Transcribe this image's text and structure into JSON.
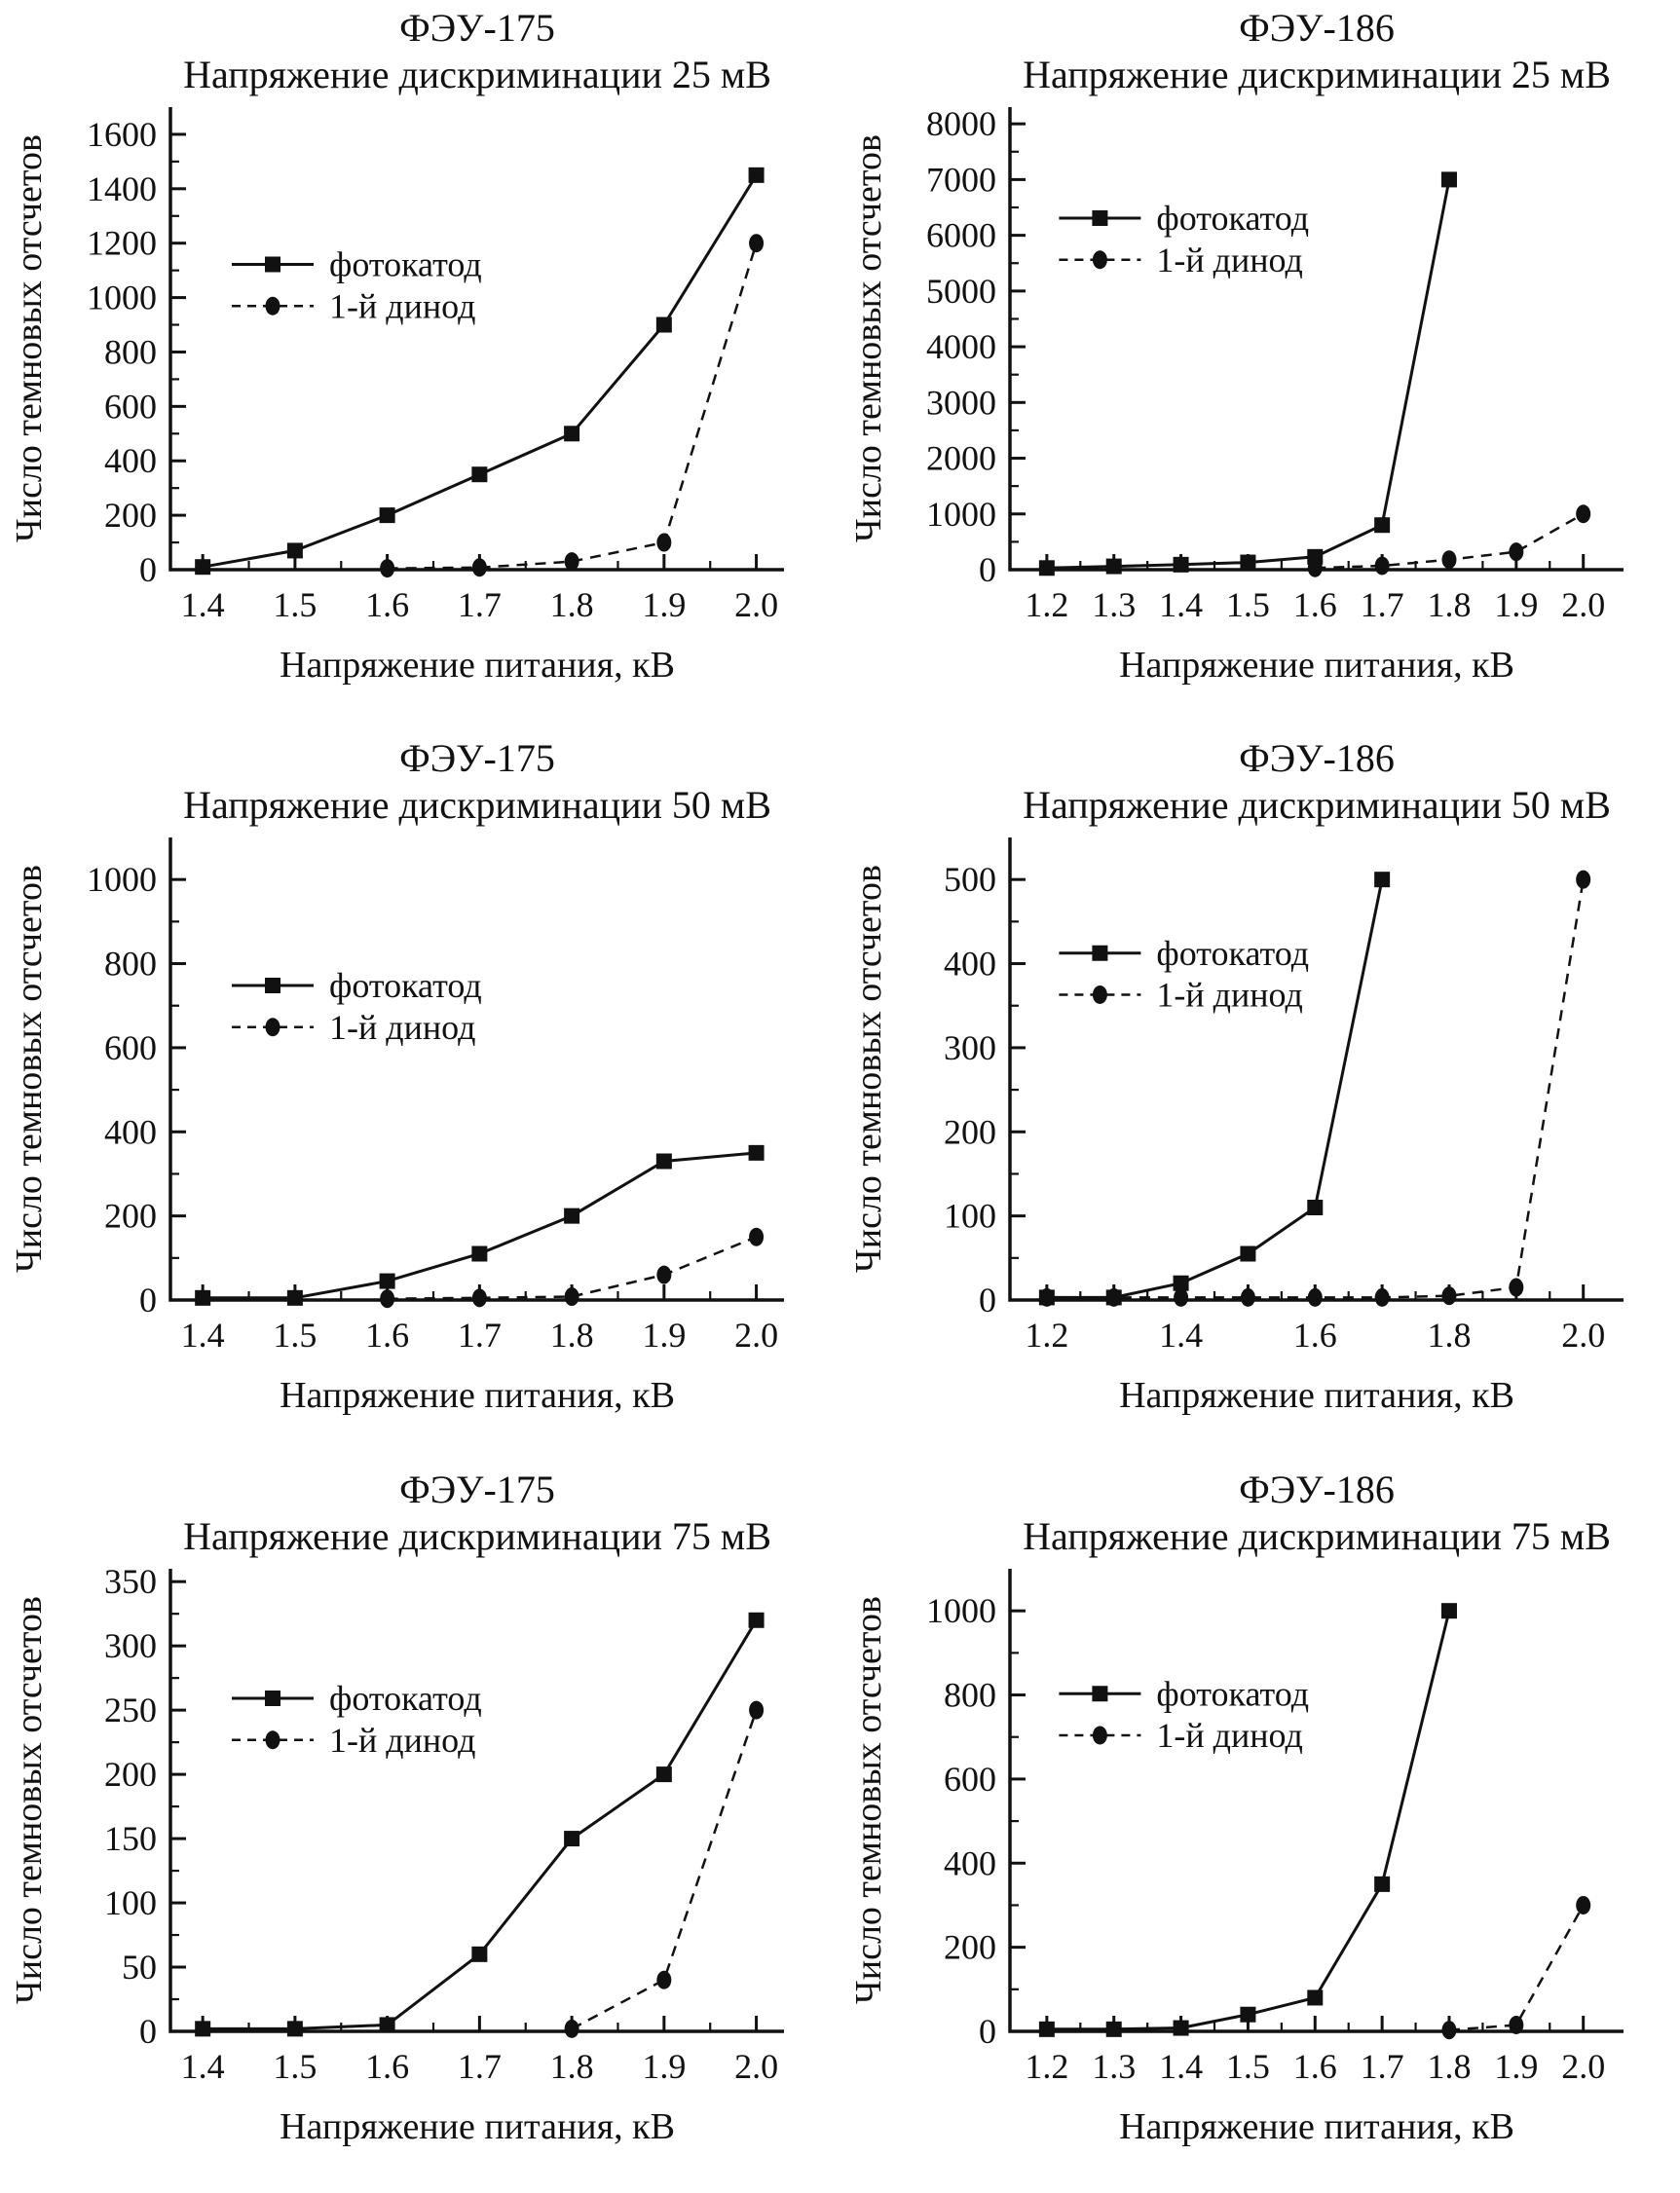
{
  "figure": {
    "color": "#111111",
    "ylabel": "Число темновых отсчетов",
    "xlabel": "Напряжение питания, кВ",
    "legend_labels": [
      "фотокатод",
      "1-й динод"
    ]
  },
  "chart_data": [
    {
      "type": "line",
      "title": "ФЭУ-175",
      "subtitle": "Напряжение дискриминации 25 мВ",
      "xlabel": "Напряжение питания, кВ",
      "ylabel": "Число темновых отсчетов",
      "xlim": [
        1.365,
        2.03
      ],
      "ylim": [
        0,
        1700
      ],
      "xtick_min": 1.4,
      "xtick_max": 2.0,
      "xtick_labels": [
        1.4,
        1.5,
        1.6,
        1.7,
        1.8,
        1.9,
        2.0
      ],
      "ytick_step": 200,
      "ytick_max": 1600,
      "yminor_step": 100,
      "legend_pos": {
        "x": 0.1,
        "y": 0.34
      },
      "series": [
        {
          "name": "фотокатод",
          "style": "solid",
          "marker": "square",
          "x": [
            1.4,
            1.5,
            1.6,
            1.7,
            1.8,
            1.9,
            2.0
          ],
          "y": [
            10,
            70,
            200,
            350,
            500,
            900,
            1450
          ]
        },
        {
          "name": "1-й динод",
          "style": "dashed",
          "marker": "circle",
          "x": [
            1.6,
            1.7,
            1.8,
            1.9,
            2.0
          ],
          "y": [
            5,
            8,
            30,
            100,
            1200
          ]
        }
      ]
    },
    {
      "type": "line",
      "title": "ФЭУ-186",
      "subtitle": "Напряжение дискриминации 25 мВ",
      "xlabel": "Напряжение питания, кВ",
      "ylabel": "Число темновых отсчетов",
      "xlim": [
        1.145,
        2.06
      ],
      "ylim": [
        0,
        8300
      ],
      "xtick_min": 1.2,
      "xtick_max": 2.0,
      "xtick_labels": [
        1.2,
        1.3,
        1.4,
        1.5,
        1.6,
        1.7,
        1.8,
        1.9,
        2.0
      ],
      "ytick_step": 1000,
      "ytick_max": 8000,
      "yminor_step": 500,
      "legend_pos": {
        "x": 0.08,
        "y": 0.24
      },
      "series": [
        {
          "name": "фотокатод",
          "style": "solid",
          "marker": "square",
          "x": [
            1.2,
            1.3,
            1.4,
            1.5,
            1.6,
            1.7,
            1.8
          ],
          "y": [
            30,
            60,
            90,
            130,
            230,
            800,
            7000
          ]
        },
        {
          "name": "1-й динод",
          "style": "dashed",
          "marker": "circle",
          "x": [
            1.6,
            1.7,
            1.8,
            1.9,
            2.0
          ],
          "y": [
            30,
            70,
            180,
            320,
            1000
          ]
        }
      ]
    },
    {
      "type": "line",
      "title": "ФЭУ-175",
      "subtitle": "Напряжение дискриминации 50 мВ",
      "xlabel": "Напряжение питания, кВ",
      "ylabel": "Число темновых отсчетов",
      "xlim": [
        1.365,
        2.03
      ],
      "ylim": [
        0,
        1100
      ],
      "xtick_min": 1.4,
      "xtick_max": 2.0,
      "xtick_labels": [
        1.4,
        1.5,
        1.6,
        1.7,
        1.8,
        1.9,
        2.0
      ],
      "ytick_step": 200,
      "ytick_max": 1000,
      "yminor_step": 100,
      "legend_pos": {
        "x": 0.1,
        "y": 0.32
      },
      "series": [
        {
          "name": "фотокатод",
          "style": "solid",
          "marker": "square",
          "x": [
            1.4,
            1.5,
            1.6,
            1.7,
            1.8,
            1.9,
            2.0
          ],
          "y": [
            5,
            5,
            45,
            110,
            200,
            330,
            350
          ]
        },
        {
          "name": "1-й динод",
          "style": "dashed",
          "marker": "circle",
          "x": [
            1.6,
            1.7,
            1.8,
            1.9,
            2.0
          ],
          "y": [
            3,
            5,
            8,
            60,
            150
          ]
        }
      ]
    },
    {
      "type": "line",
      "title": "ФЭУ-186",
      "subtitle": "Напряжение дискриминации 50 мВ",
      "xlabel": "Напряжение питания, кВ",
      "ylabel": "Число темновых отсчетов",
      "xlim": [
        1.145,
        2.06
      ],
      "ylim": [
        0,
        550
      ],
      "xtick_min": 1.2,
      "xtick_max": 2.0,
      "xtick_labels": [
        1.2,
        1.4,
        1.6,
        1.8,
        2.0
      ],
      "ytick_step": 100,
      "ytick_max": 500,
      "yminor_step": 50,
      "legend_pos": {
        "x": 0.08,
        "y": 0.25
      },
      "series": [
        {
          "name": "фотокатод",
          "style": "solid",
          "marker": "square",
          "x": [
            1.2,
            1.3,
            1.4,
            1.5,
            1.6,
            1.7
          ],
          "y": [
            3,
            3,
            20,
            55,
            110,
            500
          ]
        },
        {
          "name": "1-й динод",
          "style": "dashed",
          "marker": "circle",
          "x": [
            1.2,
            1.3,
            1.4,
            1.5,
            1.6,
            1.7,
            1.8,
            1.9,
            2.0
          ],
          "y": [
            3,
            3,
            3,
            3,
            3,
            3,
            5,
            15,
            500
          ]
        }
      ]
    },
    {
      "type": "line",
      "title": "ФЭУ-175",
      "subtitle": "Напряжение дискриминации 75 мВ",
      "xlabel": "Напряжение питания, кВ",
      "ylabel": "Число темновых отсчетов",
      "xlim": [
        1.365,
        2.03
      ],
      "ylim": [
        0,
        360
      ],
      "xtick_min": 1.4,
      "xtick_max": 2.0,
      "xtick_labels": [
        1.4,
        1.5,
        1.6,
        1.7,
        1.8,
        1.9,
        2.0
      ],
      "ytick_step": 50,
      "ytick_max": 350,
      "yminor_step": 25,
      "legend_pos": {
        "x": 0.1,
        "y": 0.28
      },
      "series": [
        {
          "name": "фотокатод",
          "style": "solid",
          "marker": "square",
          "x": [
            1.4,
            1.5,
            1.6,
            1.7,
            1.8,
            1.9,
            2.0
          ],
          "y": [
            2,
            2,
            5,
            60,
            150,
            200,
            320
          ]
        },
        {
          "name": "1-й динод",
          "style": "dashed",
          "marker": "circle",
          "x": [
            1.8,
            1.9,
            2.0
          ],
          "y": [
            2,
            40,
            250
          ]
        }
      ]
    },
    {
      "type": "line",
      "title": "ФЭУ-186",
      "subtitle": "Напряжение дискриминации 75 мВ",
      "xlabel": "Напряжение питания, кВ",
      "ylabel": "Число темновых отсчетов",
      "xlim": [
        1.145,
        2.06
      ],
      "ylim": [
        0,
        1100
      ],
      "xtick_min": 1.2,
      "xtick_max": 2.0,
      "xtick_labels": [
        1.2,
        1.3,
        1.4,
        1.5,
        1.6,
        1.7,
        1.8,
        1.9,
        2.0
      ],
      "ytick_step": 200,
      "ytick_max": 1000,
      "yminor_step": 100,
      "legend_pos": {
        "x": 0.08,
        "y": 0.27
      },
      "series": [
        {
          "name": "фотокатод",
          "style": "solid",
          "marker": "square",
          "x": [
            1.2,
            1.3,
            1.4,
            1.5,
            1.6,
            1.7,
            1.8
          ],
          "y": [
            5,
            5,
            8,
            40,
            80,
            350,
            1000
          ]
        },
        {
          "name": "1-й динод",
          "style": "dashed",
          "marker": "circle",
          "x": [
            1.8,
            1.9,
            2.0
          ],
          "y": [
            3,
            15,
            300
          ]
        }
      ]
    }
  ]
}
